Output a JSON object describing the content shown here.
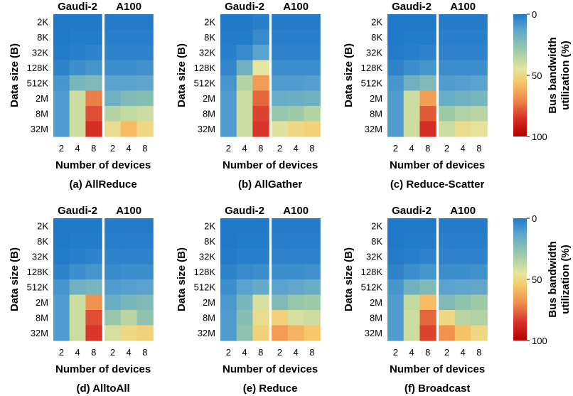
{
  "figure": {
    "colorbar": {
      "label_line1": "Bus bandwidth",
      "label_line2": "utilization (%)",
      "ticks": [
        "0",
        "50",
        "100"
      ],
      "tick_values": [
        0,
        50,
        100
      ],
      "colors": [
        "#1f78c8",
        "#5aa3cf",
        "#9ecba6",
        "#e4e59f",
        "#f7c86a",
        "#ef8a4c",
        "#d73027",
        "#b10000"
      ]
    }
  },
  "chart_data": [
    {
      "type": "heatmap",
      "caption": "(a) AllReduce",
      "xlabel": "Number of devices",
      "ylabel": "Data size (B)",
      "groups": [
        "Gaudi-2",
        "A100"
      ],
      "x": [
        "2",
        "4",
        "8"
      ],
      "y": [
        "2K",
        "8K",
        "32K",
        "128K",
        "512K",
        "2M",
        "8M",
        "32M"
      ],
      "values": {
        "Gaudi-2": [
          [
            0,
            0,
            0
          ],
          [
            0,
            1,
            1
          ],
          [
            1,
            2,
            3
          ],
          [
            3,
            6,
            8
          ],
          [
            8,
            20,
            22
          ],
          [
            10,
            40,
            72
          ],
          [
            10,
            40,
            80
          ],
          [
            10,
            40,
            86
          ]
        ],
        "A100": [
          [
            1,
            1,
            1
          ],
          [
            2,
            2,
            2
          ],
          [
            3,
            3,
            3
          ],
          [
            6,
            6,
            7
          ],
          [
            12,
            12,
            13
          ],
          [
            18,
            22,
            24
          ],
          [
            35,
            38,
            40
          ],
          [
            48,
            58,
            50
          ]
        ]
      },
      "zlim": [
        0,
        100
      ]
    },
    {
      "type": "heatmap",
      "caption": "(b) AllGather",
      "xlabel": "Number of devices",
      "ylabel": "Data size (B)",
      "groups": [
        "Gaudi-2",
        "A100"
      ],
      "x": [
        "2",
        "4",
        "8"
      ],
      "y": [
        "2K",
        "8K",
        "32K",
        "128K",
        "512K",
        "2M",
        "8M",
        "32M"
      ],
      "values": {
        "Gaudi-2": [
          [
            0,
            0,
            2
          ],
          [
            1,
            1,
            5
          ],
          [
            2,
            5,
            12
          ],
          [
            4,
            18,
            45
          ],
          [
            8,
            35,
            66
          ],
          [
            10,
            40,
            76
          ],
          [
            10,
            40,
            82
          ],
          [
            10,
            40,
            84
          ]
        ],
        "A100": [
          [
            1,
            1,
            1
          ],
          [
            2,
            2,
            2
          ],
          [
            3,
            3,
            3
          ],
          [
            6,
            6,
            6
          ],
          [
            10,
            10,
            11
          ],
          [
            16,
            17,
            18
          ],
          [
            28,
            30,
            35
          ],
          [
            44,
            50,
            52
          ]
        ]
      },
      "zlim": [
        0,
        100
      ]
    },
    {
      "type": "heatmap",
      "caption": "(c) Reduce-Scatter",
      "xlabel": "Number of devices",
      "ylabel": "Data size (B)",
      "groups": [
        "Gaudi-2",
        "A100"
      ],
      "x": [
        "2",
        "4",
        "8"
      ],
      "y": [
        "2K",
        "8K",
        "32K",
        "128K",
        "512K",
        "2M",
        "8M",
        "32M"
      ],
      "values": {
        "Gaudi-2": [
          [
            0,
            0,
            0
          ],
          [
            0,
            1,
            1
          ],
          [
            1,
            2,
            3
          ],
          [
            3,
            6,
            8
          ],
          [
            8,
            18,
            22
          ],
          [
            10,
            40,
            65
          ],
          [
            10,
            40,
            78
          ],
          [
            10,
            40,
            86
          ]
        ],
        "A100": [
          [
            1,
            1,
            1
          ],
          [
            2,
            2,
            2
          ],
          [
            3,
            3,
            3
          ],
          [
            6,
            6,
            6
          ],
          [
            10,
            11,
            12
          ],
          [
            16,
            18,
            20
          ],
          [
            30,
            34,
            36
          ],
          [
            40,
            48,
            46
          ]
        ]
      },
      "zlim": [
        0,
        100
      ]
    },
    {
      "type": "heatmap",
      "caption": "(d) AlltoAll",
      "xlabel": "Number of devices",
      "ylabel": "Data size (B)",
      "groups": [
        "Gaudi-2",
        "A100"
      ],
      "x": [
        "2",
        "4",
        "8"
      ],
      "y": [
        "2K",
        "8K",
        "32K",
        "128K",
        "512K",
        "2M",
        "8M",
        "32M"
      ],
      "values": {
        "Gaudi-2": [
          [
            0,
            0,
            0
          ],
          [
            0,
            1,
            1
          ],
          [
            1,
            2,
            3
          ],
          [
            3,
            6,
            8
          ],
          [
            8,
            18,
            20
          ],
          [
            10,
            40,
            68
          ],
          [
            10,
            40,
            80
          ],
          [
            10,
            40,
            84
          ]
        ],
        "A100": [
          [
            1,
            1,
            1
          ],
          [
            2,
            2,
            2
          ],
          [
            3,
            3,
            3
          ],
          [
            5,
            6,
            6
          ],
          [
            10,
            11,
            12
          ],
          [
            16,
            20,
            22
          ],
          [
            28,
            36,
            26
          ],
          [
            42,
            50,
            52
          ]
        ]
      },
      "zlim": [
        0,
        100
      ]
    },
    {
      "type": "heatmap",
      "caption": "(e) Reduce",
      "xlabel": "Number of devices",
      "ylabel": "Data size (B)",
      "groups": [
        "Gaudi-2",
        "A100"
      ],
      "x": [
        "2",
        "4",
        "8"
      ],
      "y": [
        "2K",
        "8K",
        "32K",
        "128K",
        "512K",
        "2M",
        "8M",
        "32M"
      ],
      "values": {
        "Gaudi-2": [
          [
            0,
            0,
            0
          ],
          [
            0,
            1,
            1
          ],
          [
            1,
            2,
            2
          ],
          [
            3,
            5,
            6
          ],
          [
            6,
            12,
            15
          ],
          [
            9,
            20,
            42
          ],
          [
            10,
            24,
            48
          ],
          [
            10,
            26,
            52
          ]
        ],
        "A100": [
          [
            1,
            1,
            1
          ],
          [
            2,
            2,
            2
          ],
          [
            3,
            3,
            3
          ],
          [
            6,
            6,
            7
          ],
          [
            12,
            14,
            16
          ],
          [
            22,
            28,
            30
          ],
          [
            52,
            42,
            40
          ],
          [
            66,
            60,
            55
          ]
        ]
      },
      "zlim": [
        0,
        100
      ]
    },
    {
      "type": "heatmap",
      "caption": "(f) Broadcast",
      "xlabel": "Number of devices",
      "ylabel": "Data size (B)",
      "groups": [
        "Gaudi-2",
        "A100"
      ],
      "x": [
        "2",
        "4",
        "8"
      ],
      "y": [
        "2K",
        "8K",
        "32K",
        "128K",
        "512K",
        "2M",
        "8M",
        "32M"
      ],
      "values": {
        "Gaudi-2": [
          [
            0,
            0,
            0
          ],
          [
            0,
            1,
            1
          ],
          [
            1,
            2,
            3
          ],
          [
            3,
            6,
            8
          ],
          [
            8,
            18,
            22
          ],
          [
            10,
            38,
            58
          ],
          [
            10,
            40,
            76
          ],
          [
            10,
            40,
            82
          ]
        ],
        "A100": [
          [
            1,
            1,
            1
          ],
          [
            2,
            2,
            2
          ],
          [
            3,
            3,
            3
          ],
          [
            6,
            6,
            7
          ],
          [
            12,
            13,
            14
          ],
          [
            22,
            26,
            30
          ],
          [
            50,
            36,
            34
          ],
          [
            68,
            56,
            50
          ]
        ]
      },
      "zlim": [
        0,
        100
      ]
    }
  ]
}
